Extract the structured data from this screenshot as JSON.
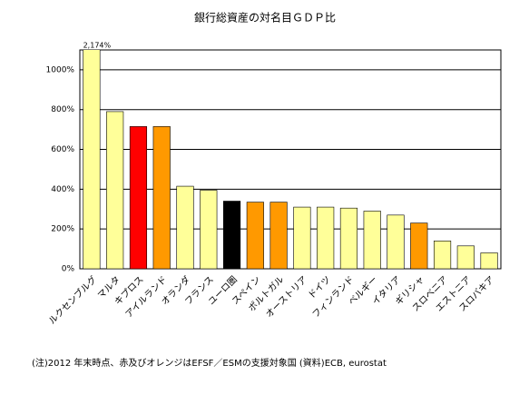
{
  "chart_data": {
    "type": "bar",
    "title": "銀行総資産の対名目ＧＤＰ比",
    "categories": [
      "ルクセンブルグ",
      "マルタ",
      "キプロス",
      "アイルランド",
      "オランダ",
      "フランス",
      "ユーロ圏",
      "スペイン",
      "ポルトガル",
      "オーストリア",
      "ドイツ",
      "フィンランド",
      "ベルギー",
      "イタリア",
      "ギリシャ",
      "スロベニア",
      "エストニア",
      "スロバキア"
    ],
    "values": [
      2174,
      790,
      715,
      715,
      415,
      395,
      340,
      335,
      335,
      310,
      310,
      305,
      290,
      270,
      230,
      140,
      115,
      80
    ],
    "value_labels": [
      "2,174%",
      null,
      null,
      null,
      null,
      null,
      null,
      null,
      null,
      null,
      null,
      null,
      null,
      null,
      null,
      null,
      null,
      null
    ],
    "colors": [
      "#ffff99",
      "#ffff99",
      "#ff0000",
      "#ff9900",
      "#ffff99",
      "#ffff99",
      "#000000",
      "#ff9900",
      "#ff9900",
      "#ffff99",
      "#ffff99",
      "#ffff99",
      "#ffff99",
      "#ffff99",
      "#ff9900",
      "#ffff99",
      "#ffff99",
      "#ffff99"
    ],
    "ylim": [
      0,
      1100
    ],
    "yticks": [
      {
        "value": 0,
        "label": "0%"
      },
      {
        "value": 200,
        "label": "200%"
      },
      {
        "value": 400,
        "label": "400%"
      },
      {
        "value": 600,
        "label": "600%"
      },
      {
        "value": 800,
        "label": "800%"
      },
      {
        "value": 1000,
        "label": "1000%"
      }
    ],
    "grid": true,
    "note": "(注)2012 年末時点、赤及びオレンジはEFSF／ESMの支援対象国 (資料)ECB, eurostat"
  }
}
